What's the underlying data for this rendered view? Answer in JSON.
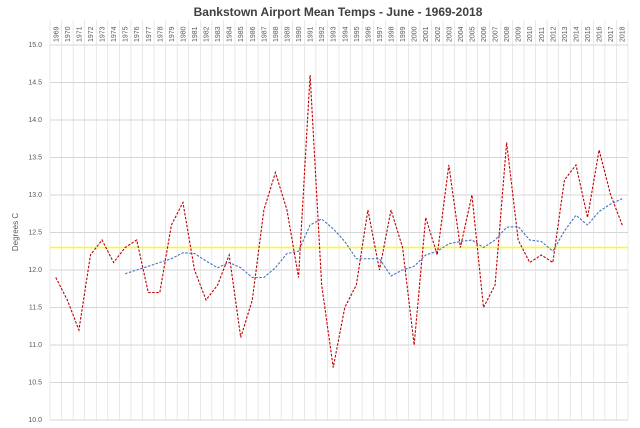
{
  "chart_data": {
    "type": "line",
    "title": "Bankstown Airport Mean Temps - June - 1969-2018",
    "y_label": "Degrees C",
    "categories": [
      "1969",
      "1970",
      "1971",
      "1972",
      "1973",
      "1974",
      "1975",
      "1976",
      "1977",
      "1978",
      "1979",
      "1980",
      "1981",
      "1982",
      "1983",
      "1984",
      "1985",
      "1986",
      "1987",
      "1988",
      "1989",
      "1990",
      "1991",
      "1992",
      "1993",
      "1994",
      "1995",
      "1996",
      "1997",
      "1998",
      "1999",
      "2000",
      "2001",
      "2002",
      "2003",
      "2004",
      "2005",
      "2006",
      "2007",
      "2008",
      "2009",
      "2010",
      "2011",
      "2012",
      "2013",
      "2014",
      "2015",
      "2016",
      "2017",
      "2018"
    ],
    "series": [
      {
        "color": "#c00000",
        "dashed": true,
        "values": [
          11.9,
          11.6,
          11.2,
          12.2,
          12.4,
          12.1,
          12.3,
          12.4,
          11.7,
          11.7,
          12.6,
          12.9,
          12.0,
          11.6,
          11.8,
          12.2,
          11.1,
          11.6,
          12.8,
          13.3,
          12.8,
          11.9,
          14.6,
          11.8,
          10.7,
          11.5,
          11.8,
          12.8,
          12.0,
          12.8,
          12.3,
          11.0,
          12.7,
          12.2,
          13.4,
          12.3,
          13.0,
          11.5,
          11.8,
          13.7,
          12.4,
          12.1,
          12.2,
          12.1,
          13.2,
          13.4,
          12.7,
          13.6,
          13.0,
          12.6
        ]
      },
      {
        "color": "#4472c4",
        "dashed": true,
        "values": [
          null,
          null,
          null,
          null,
          null,
          null,
          11.95,
          12.0,
          12.05,
          12.1,
          12.15,
          12.23,
          12.22,
          12.12,
          12.03,
          12.1,
          12.03,
          11.9,
          11.9,
          12.03,
          12.22,
          12.25,
          12.6,
          12.68,
          12.55,
          12.38,
          12.15,
          12.15,
          12.15,
          11.92,
          12.0,
          12.05,
          12.2,
          12.25,
          12.35,
          12.38,
          12.4,
          12.3,
          12.4,
          12.57,
          12.58,
          12.4,
          12.38,
          12.25,
          12.52,
          12.73,
          12.6,
          12.78,
          12.88,
          12.95
        ]
      }
    ],
    "reference_line": {
      "value": 12.3,
      "color": "#ffff00"
    },
    "ylim": [
      10,
      15
    ],
    "yticks": [
      {
        "value": 10,
        "label": "10.0"
      },
      {
        "value": 10.5,
        "label": "10.5"
      },
      {
        "value": 11,
        "label": "11.0"
      },
      {
        "value": 11.5,
        "label": "11.5"
      },
      {
        "value": 12,
        "label": "12.0"
      },
      {
        "value": 12.5,
        "label": "12.5"
      },
      {
        "value": 13,
        "label": "13.0"
      },
      {
        "value": 13.5,
        "label": "13.5"
      },
      {
        "value": 14,
        "label": "14.0"
      },
      {
        "value": 14.5,
        "label": "14.5"
      },
      {
        "value": 15,
        "label": "15.0"
      }
    ],
    "grid": true
  }
}
